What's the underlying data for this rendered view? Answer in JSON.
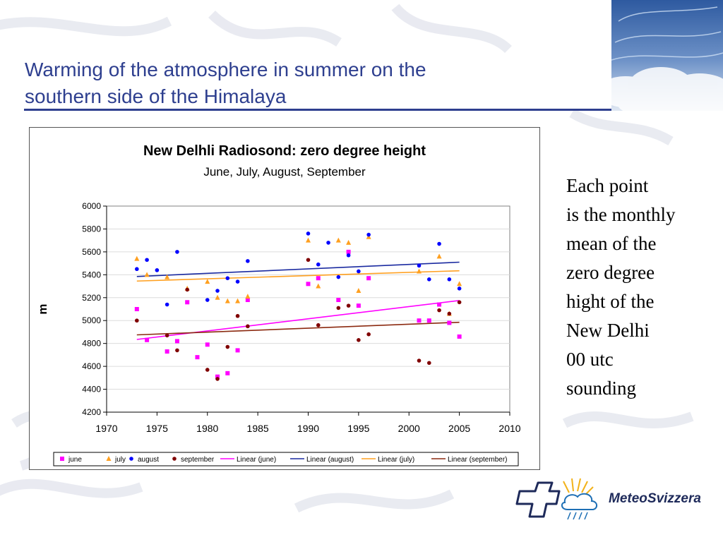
{
  "slide": {
    "title_line1": "Warming of the atmosphere in summer on the",
    "title_line2": "southern side of the Himalaya",
    "note_lines": [
      "Each point",
      "is the monthly",
      "mean of the",
      "zero degree",
      "hight of the",
      "New Delhi",
      "00 utc",
      "sounding"
    ],
    "logo_text": "MeteoSvizzera",
    "accent_color": "#2e3f8f"
  },
  "chart_data": {
    "type": "scatter",
    "title": "New Delhli Radiosond: zero degree height",
    "subtitle": "June, July, August, September",
    "xlabel": "",
    "ylabel": "m",
    "xlim": [
      1970,
      2010
    ],
    "ylim": [
      4200,
      6000
    ],
    "x_ticks": [
      1970,
      1975,
      1980,
      1985,
      1990,
      1995,
      2000,
      2005,
      2010
    ],
    "y_ticks": [
      4200,
      4400,
      4600,
      4800,
      5000,
      5200,
      5400,
      5600,
      5800,
      6000
    ],
    "grid": "horizontal",
    "legend_position": "bottom",
    "series": [
      {
        "name": "june",
        "marker": "square",
        "color": "#ff00ff",
        "points": [
          [
            1973,
            5100
          ],
          [
            1974,
            4830
          ],
          [
            1976,
            4730
          ],
          [
            1977,
            4820
          ],
          [
            1978,
            5160
          ],
          [
            1979,
            4680
          ],
          [
            1980,
            4790
          ],
          [
            1981,
            4510
          ],
          [
            1982,
            4540
          ],
          [
            1983,
            4740
          ],
          [
            1984,
            5180
          ],
          [
            1990,
            5320
          ],
          [
            1991,
            5370
          ],
          [
            1993,
            5180
          ],
          [
            1994,
            5600
          ],
          [
            1995,
            5130
          ],
          [
            1996,
            5370
          ],
          [
            2001,
            5000
          ],
          [
            2002,
            5000
          ],
          [
            2003,
            5140
          ],
          [
            2004,
            4980
          ],
          [
            2005,
            4860
          ]
        ]
      },
      {
        "name": "july",
        "marker": "triangle",
        "color": "#ffa020",
        "points": [
          [
            1973,
            5540
          ],
          [
            1974,
            5400
          ],
          [
            1976,
            5380
          ],
          [
            1978,
            5280
          ],
          [
            1980,
            5340
          ],
          [
            1981,
            5200
          ],
          [
            1982,
            5170
          ],
          [
            1983,
            5170
          ],
          [
            1984,
            5210
          ],
          [
            1990,
            5700
          ],
          [
            1991,
            5300
          ],
          [
            1993,
            5700
          ],
          [
            1994,
            5680
          ],
          [
            1995,
            5260
          ],
          [
            1996,
            5730
          ],
          [
            2001,
            5430
          ],
          [
            2003,
            5560
          ],
          [
            2004,
            5060
          ],
          [
            2005,
            5320
          ]
        ]
      },
      {
        "name": "august",
        "marker": "circle",
        "color": "#0000ff",
        "points": [
          [
            1973,
            5450
          ],
          [
            1974,
            5530
          ],
          [
            1975,
            5440
          ],
          [
            1976,
            5140
          ],
          [
            1977,
            5600
          ],
          [
            1980,
            5180
          ],
          [
            1981,
            5260
          ],
          [
            1982,
            5370
          ],
          [
            1983,
            5340
          ],
          [
            1984,
            5520
          ],
          [
            1990,
            5760
          ],
          [
            1991,
            5490
          ],
          [
            1992,
            5680
          ],
          [
            1993,
            5380
          ],
          [
            1994,
            5570
          ],
          [
            1995,
            5430
          ],
          [
            1996,
            5750
          ],
          [
            2001,
            5480
          ],
          [
            2002,
            5360
          ],
          [
            2003,
            5670
          ],
          [
            2004,
            5360
          ],
          [
            2005,
            5280
          ]
        ]
      },
      {
        "name": "september",
        "marker": "circle",
        "color": "#800000",
        "points": [
          [
            1973,
            5000
          ],
          [
            1976,
            4870
          ],
          [
            1977,
            4740
          ],
          [
            1978,
            5270
          ],
          [
            1980,
            4570
          ],
          [
            1981,
            4490
          ],
          [
            1982,
            4770
          ],
          [
            1983,
            5040
          ],
          [
            1984,
            4950
          ],
          [
            1990,
            5530
          ],
          [
            1991,
            4960
          ],
          [
            1993,
            5110
          ],
          [
            1994,
            5130
          ],
          [
            1995,
            4830
          ],
          [
            1996,
            4880
          ],
          [
            2001,
            4650
          ],
          [
            2002,
            4630
          ],
          [
            2003,
            5090
          ],
          [
            2004,
            5060
          ],
          [
            2005,
            5160
          ]
        ]
      }
    ],
    "trendlines": [
      {
        "name": "Linear (june)",
        "color": "#ff00ff",
        "x": [
          1973,
          2005
        ],
        "y": [
          4835,
          5175
        ]
      },
      {
        "name": "Linear (august)",
        "color": "#1a2aa0",
        "x": [
          1973,
          2005
        ],
        "y": [
          5385,
          5510
        ]
      },
      {
        "name": "Linear (july)",
        "color": "#ffa020",
        "x": [
          1973,
          2005
        ],
        "y": [
          5345,
          5435
        ]
      },
      {
        "name": "Linear (september)",
        "color": "#8b2a10",
        "x": [
          1973,
          2005
        ],
        "y": [
          4875,
          4985
        ]
      }
    ]
  }
}
